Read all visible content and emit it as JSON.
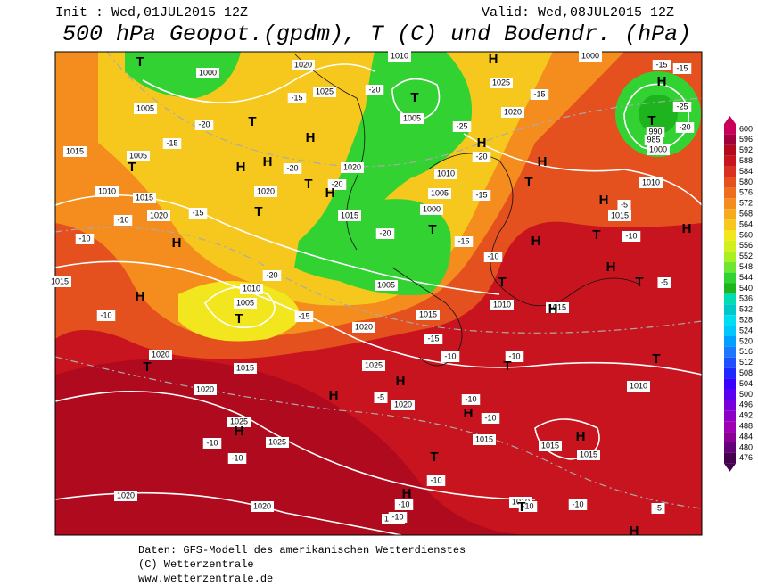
{
  "header": {
    "init": "Init : Wed,01JUL2015 12Z",
    "valid": "Valid: Wed,08JUL2015 12Z",
    "title": "500 hPa Geopot.(gpdm), T (C) und Bodendr. (hPa)"
  },
  "colorbar": {
    "ticks": [
      600,
      596,
      592,
      588,
      584,
      580,
      576,
      572,
      568,
      564,
      560,
      556,
      552,
      548,
      544,
      540,
      536,
      532,
      528,
      524,
      520,
      516,
      512,
      508,
      504,
      500,
      496,
      492,
      488,
      484,
      480,
      476
    ],
    "colors": [
      "#c8005a",
      "#a0003c",
      "#b40a1e",
      "#c8141e",
      "#d8321e",
      "#e4501e",
      "#ee6e1e",
      "#f48c1e",
      "#f6aa1e",
      "#f6c81e",
      "#f2e61e",
      "#d2f01e",
      "#a8f01e",
      "#6ee632",
      "#32d232",
      "#1eb41e",
      "#00dcb4",
      "#00c8c8",
      "#00dcf0",
      "#00c8ff",
      "#00a0ff",
      "#1e78ff",
      "#1e50ff",
      "#1e28ff",
      "#3c00ff",
      "#5a00f0",
      "#7800dc",
      "#8c00c8",
      "#a000b4",
      "#8c0096",
      "#640078",
      "#460050"
    ]
  },
  "map": {
    "isobar_labels": [
      "1000",
      "1020",
      "1005",
      "1025",
      "1015",
      "1005",
      "1010",
      "1015",
      "1020",
      "1020",
      "1020",
      "1015",
      "1010",
      "1005",
      "1010",
      "1005",
      "1000",
      "1025",
      "1020",
      "1000",
      "990",
      "985",
      "1000",
      "1010",
      "1015",
      "1010",
      "1005",
      "1005",
      "1015",
      "1010",
      "1015",
      "1020",
      "1020",
      "1015",
      "1025",
      "1020",
      "1020",
      "1025",
      "1025",
      "1015",
      "1015",
      "1015",
      "1010",
      "1010",
      "1020",
      "1020",
      "1015",
      "1015"
    ],
    "temp_labels": [
      "-15",
      "-15",
      "-15",
      "-20",
      "-15",
      "-20",
      "-15",
      "-25",
      "-20",
      "-25",
      "-20",
      "-20",
      "-20",
      "-15",
      "-15",
      "-10",
      "-10",
      "-20",
      "-15",
      "-10",
      "-10",
      "-5",
      "-20",
      "-15",
      "-10",
      "-15",
      "-10",
      "-10",
      "-5",
      "-5",
      "-10",
      "-10",
      "-10",
      "-10",
      "-10",
      "-10",
      "-10",
      "-10",
      "-5",
      "-10"
    ],
    "centers": [
      "H",
      "H",
      "T",
      "T",
      "T",
      "T",
      "H",
      "T",
      "H",
      "T",
      "H",
      "H",
      "H",
      "T",
      "H",
      "T",
      "H",
      "T",
      "H",
      "T",
      "H",
      "H",
      "H",
      "T",
      "T",
      "H",
      "T",
      "H",
      "T",
      "T",
      "H",
      "H",
      "T",
      "H",
      "H",
      "H",
      "T",
      "H",
      "T",
      "H"
    ]
  },
  "footer": [
    "Daten: GFS-Modell des amerikanischen Wetterdienstes",
    "(C) Wetterzentrale",
    "www.wetterzentrale.de"
  ]
}
